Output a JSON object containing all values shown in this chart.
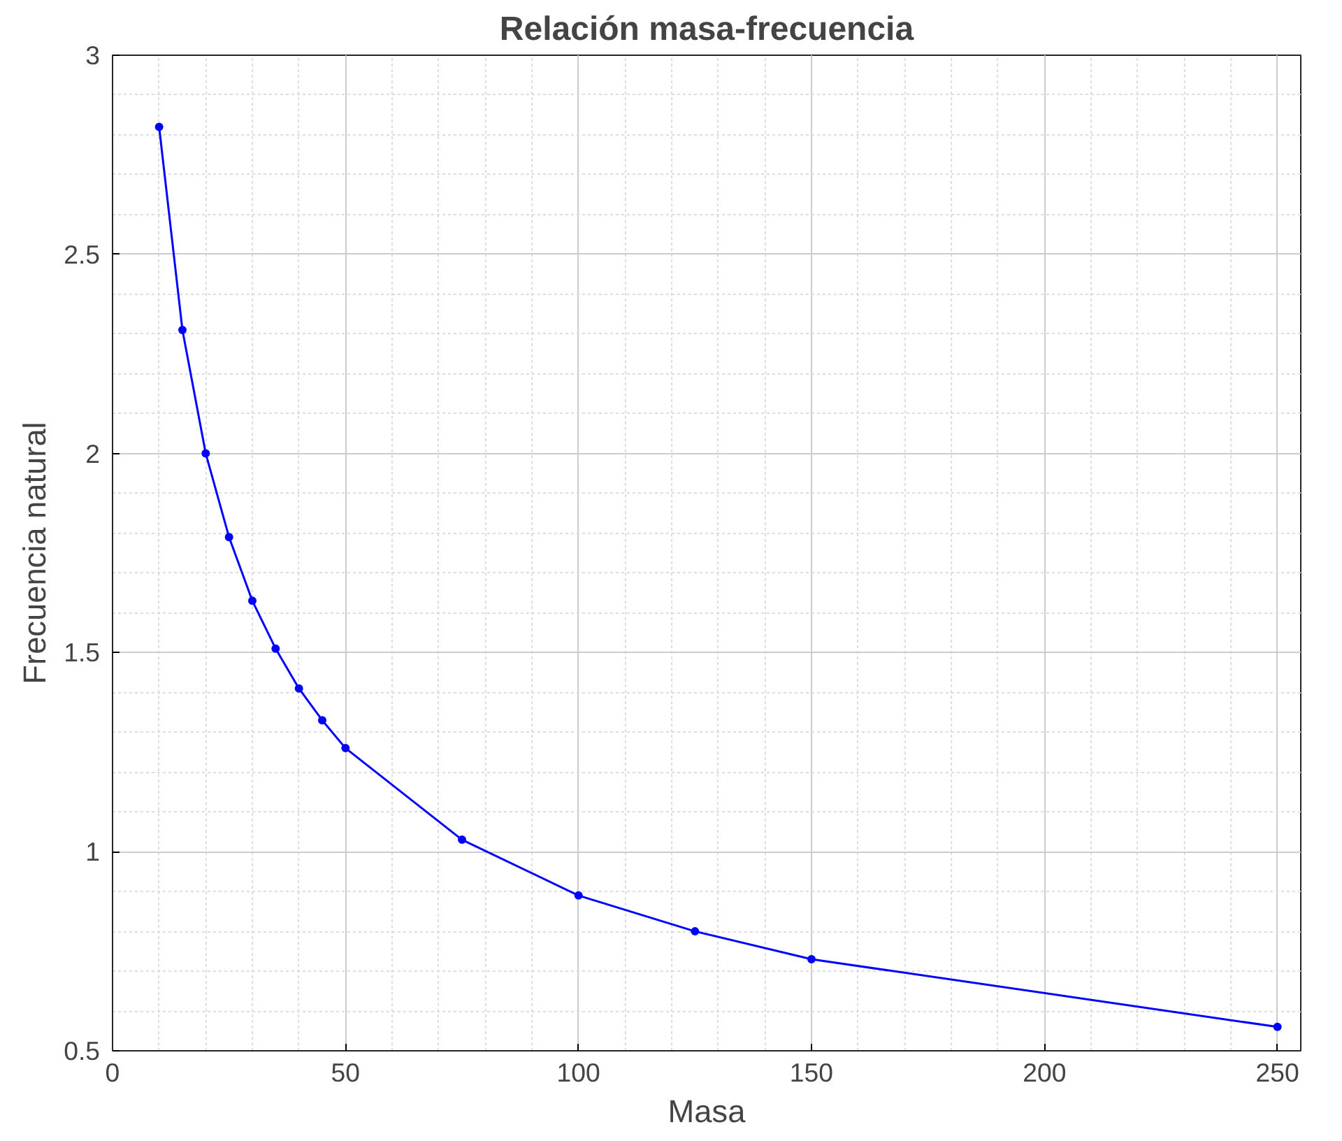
{
  "chart_data": {
    "type": "line",
    "title": "Relación masa-frecuencia",
    "xlabel": "Masa",
    "ylabel": "Frecuencia natural",
    "x": [
      10,
      15,
      20,
      25,
      30,
      35,
      40,
      45,
      50,
      75,
      100,
      125,
      150,
      250
    ],
    "series": [
      {
        "color": "#0000ff",
        "values": [
          2.82,
          2.31,
          2.0,
          1.79,
          1.63,
          1.51,
          1.41,
          1.33,
          1.26,
          1.03,
          0.89,
          0.8,
          0.73,
          0.56
        ]
      }
    ],
    "xlim": [
      0,
      255
    ],
    "ylim": [
      0.5,
      3
    ],
    "xticks": [
      0,
      50,
      100,
      150,
      200,
      250
    ],
    "yticks": [
      0.5,
      1,
      1.5,
      2,
      2.5,
      3
    ],
    "grid": true,
    "marker": "circle",
    "line_style": "solid"
  }
}
